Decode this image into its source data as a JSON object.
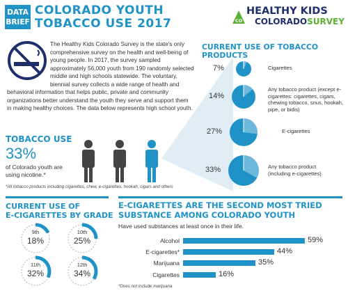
{
  "header": {
    "brief_line1": "DATA",
    "brief_line2": "BRIEF",
    "title_line1": "COLORADO YOUTH",
    "title_line2": "TOBACCO USE 2017",
    "logo_line1": "HEALTHY KIDS",
    "logo_line2a": "COLORADO",
    "logo_line2b": "SURVEY",
    "logo_badge": "CO"
  },
  "intro": {
    "text": "The Healthy Kids Colorado Survey is the state's only comprehensive survey on the health and well-being of young people. In 2017, the survey sampled approximately 56,000 youth from 190 randomly selected middle and high schools statewide. The voluntary, biennial survey collects a wide range of health and behavioral information that helps public, private and community organizations better understand the youth they serve and support them in making healthy choices. The data below represents high school youth."
  },
  "tobacco_use": {
    "title": "TOBACCO USE",
    "big": "33%",
    "text": "of Colorado youth are using nicotine.*",
    "footnote": "*All tobacco products including cigarettes, chew, e-cigarettes, hookah, cigars and others"
  },
  "products": {
    "title_line1": "CURRENT USE OF TOBACCO",
    "title_line2": "PRODUCTS",
    "items": [
      {
        "pct": "7%",
        "value": 7,
        "label": "Cigarettes"
      },
      {
        "pct": "14%",
        "value": 14,
        "label": "Any tobacco product (except e-cigarettes: cigarettes, cigars, chewing tobacco, snus, hookah, pipe, or bidis)"
      },
      {
        "pct": "27%",
        "value": 27,
        "label": "E-cigarettes"
      },
      {
        "pct": "33%",
        "value": 33,
        "label": "Any tobacco product (including e-cigarettes)"
      }
    ]
  },
  "grades": {
    "title_line1": "CURRENT USE OF",
    "title_line2": "E-CIGARETTES BY GRADE",
    "items": [
      {
        "grade": "9th",
        "pct": "18%",
        "value": 18
      },
      {
        "grade": "10th",
        "pct": "25%",
        "value": 25
      },
      {
        "grade": "11th",
        "pct": "32%",
        "value": 32
      },
      {
        "grade": "12th",
        "pct": "34%",
        "value": 34
      }
    ]
  },
  "substances": {
    "title_line1": "E-CIGARETTES ARE THE SECOND MOST TRIED",
    "title_line2": "SUBSTANCE AMONG COLORADO YOUTH",
    "subtitle": "Have used substances at least once in their life.",
    "footnote": "*Does not include marijuana",
    "items": [
      {
        "label": "Alcohol",
        "pct": "59%",
        "value": 59
      },
      {
        "label": "E-cigarettes*",
        "pct": "44%",
        "value": 44
      },
      {
        "label": "Marijuana",
        "pct": "35%",
        "value": 35
      },
      {
        "label": "Cigarettes",
        "pct": "16%",
        "value": 16
      }
    ]
  },
  "colors": {
    "accent": "#1f93c8",
    "dark_person": "#444444",
    "track": "#d8e9f3",
    "logo_navy": "#1e2f6c",
    "logo_green": "#5cb133"
  }
}
